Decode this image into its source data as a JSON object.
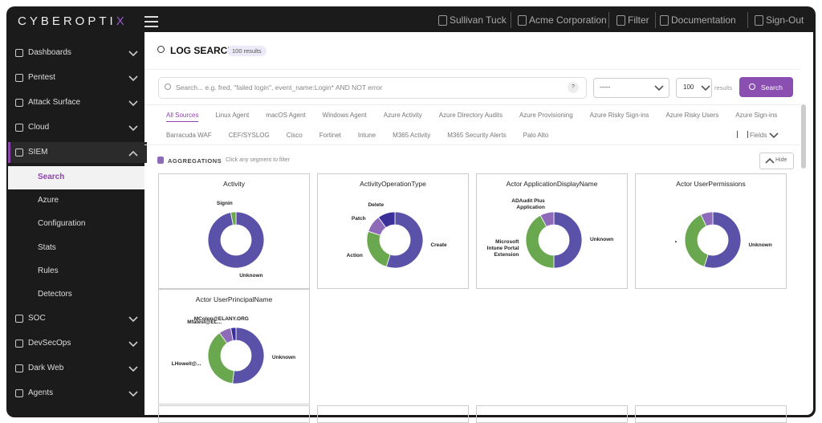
{
  "brand": {
    "text": "CYBEROPTI",
    "accent": "X"
  },
  "topbar": {
    "user": "Sullivan Tuck",
    "org": "Acme Corporation",
    "filter": "Filter",
    "docs": "Documentation",
    "signout": "Sign-Out"
  },
  "sidebar": {
    "items": [
      "Dashboards",
      "Pentest",
      "Attack Surface",
      "Cloud",
      "SIEM",
      "SOC",
      "DevSecOps",
      "Dark Web",
      "Agents"
    ],
    "siem_children": [
      "Search",
      "Azure",
      "Configuration",
      "Stats",
      "Rules",
      "Detectors"
    ]
  },
  "header": {
    "title": "LOG SEARCH",
    "results": "100 results"
  },
  "search": {
    "placeholder": "Search... e.g. fred, \"failed login\", event_name:Login* AND NOT error",
    "help": "?",
    "select": "-----",
    "limit": "100",
    "limit_suffix": "results",
    "button": "Search"
  },
  "tabs": {
    "row1": [
      "All Sources",
      "Linux Agent",
      "macOS Agent",
      "Windows Agent",
      "Azure Activity",
      "Azure Directory Audits",
      "Azure Provisioning",
      "Azure Risky Sign-ins",
      "Azure Risky Users",
      "Azure Sign-ins"
    ],
    "row2": [
      "Barracuda WAF",
      "CEF/SYSLOG",
      "Cisco",
      "Fortinet",
      "Intune",
      "M365 Activity",
      "M365 Security Alerts",
      "Palo Alto"
    ],
    "fields": "Fields"
  },
  "aggregations": {
    "title": "AGGREGATIONS",
    "hint": "Click any segment to filter",
    "hide": "Hide",
    "charts": [
      {
        "type": "pie",
        "title": "Activity",
        "categories": [
          "Unknown",
          "Signin"
        ],
        "values": [
          97,
          3
        ],
        "colors": [
          "#5a52a8",
          "#6aa84f"
        ]
      },
      {
        "type": "pie",
        "title": "ActivityOperationType",
        "categories": [
          "Create",
          "Action",
          "Patch",
          "Delete"
        ],
        "values": [
          55,
          25,
          10,
          10
        ],
        "colors": [
          "#5a52a8",
          "#6aa84f",
          "#8e6bb8",
          "#3b2f9a"
        ]
      },
      {
        "type": "pie",
        "title": "Actor ApplicationDisplayName",
        "categories": [
          "Unknown",
          "Microsoft Intune Portal Extension",
          "ADAudit Plus Application"
        ],
        "values": [
          50,
          42,
          8
        ],
        "colors": [
          "#5a52a8",
          "#6aa84f",
          "#8e6bb8"
        ]
      },
      {
        "type": "pie",
        "title": "Actor UserPermissions",
        "categories": [
          "Unknown",
          "•",
          ""
        ],
        "values": [
          55,
          38,
          7
        ],
        "colors": [
          "#5a52a8",
          "#6aa84f",
          "#8e6bb8"
        ]
      },
      {
        "type": "pie",
        "title": "Actor UserPrincipalName",
        "categories": [
          "Unknown",
          "LHowell@...",
          "Mfatest@EL...",
          "MColon@ELANY.ORG"
        ],
        "values": [
          52,
          38,
          7,
          3
        ],
        "colors": [
          "#5a52a8",
          "#6aa84f",
          "#8e6bb8",
          "#3b2f9a"
        ]
      }
    ]
  }
}
